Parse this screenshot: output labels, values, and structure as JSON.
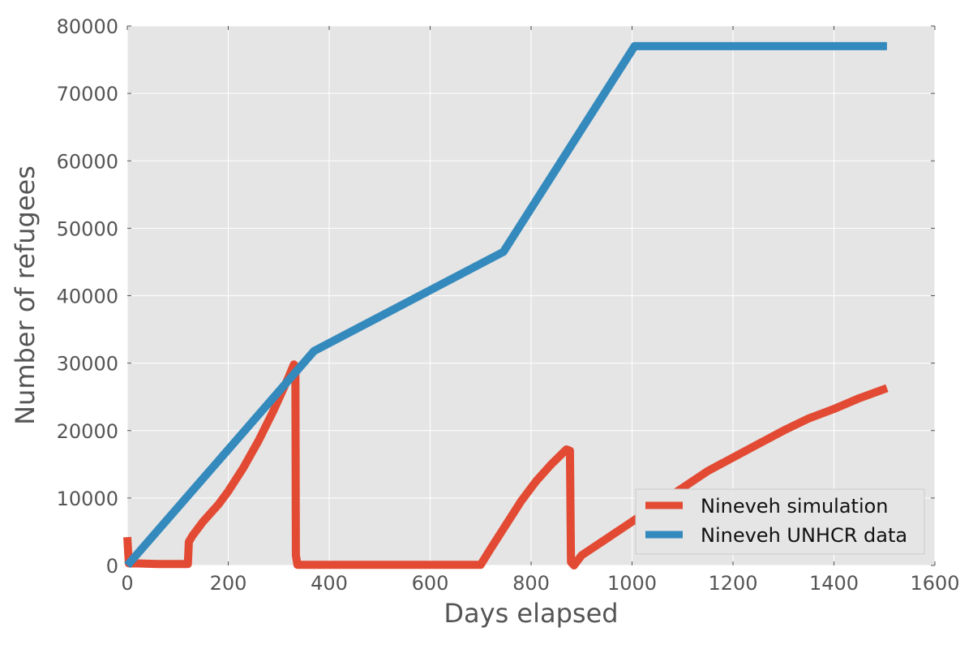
{
  "chart_data": {
    "type": "line",
    "xlabel": "Days elapsed",
    "ylabel": "Number of refugees",
    "xlim": [
      0,
      1600
    ],
    "ylim": [
      0,
      80000
    ],
    "xticks": [
      0,
      200,
      400,
      600,
      800,
      1000,
      1200,
      1400,
      1600
    ],
    "yticks": [
      0,
      10000,
      20000,
      30000,
      40000,
      50000,
      60000,
      70000,
      80000
    ],
    "grid": true,
    "legend_position": "bottom-right",
    "series": [
      {
        "name": "Nineveh simulation",
        "color": "#E24A33",
        "points": [
          [
            0,
            4200
          ],
          [
            3,
            300
          ],
          [
            20,
            300
          ],
          [
            60,
            200
          ],
          [
            100,
            200
          ],
          [
            120,
            200
          ],
          [
            122,
            3500
          ],
          [
            130,
            4500
          ],
          [
            150,
            6500
          ],
          [
            180,
            9000
          ],
          [
            200,
            11000
          ],
          [
            230,
            14500
          ],
          [
            260,
            18500
          ],
          [
            290,
            23000
          ],
          [
            320,
            28000
          ],
          [
            330,
            29800
          ],
          [
            333,
            29500
          ],
          [
            334,
            1500
          ],
          [
            337,
            100
          ],
          [
            400,
            100
          ],
          [
            500,
            100
          ],
          [
            600,
            100
          ],
          [
            700,
            100
          ],
          [
            720,
            2500
          ],
          [
            750,
            6000
          ],
          [
            780,
            9500
          ],
          [
            810,
            12500
          ],
          [
            840,
            15000
          ],
          [
            870,
            17200
          ],
          [
            877,
            17000
          ],
          [
            879,
            500
          ],
          [
            885,
            0
          ],
          [
            900,
            1500
          ],
          [
            950,
            4000
          ],
          [
            1000,
            6500
          ],
          [
            1050,
            9000
          ],
          [
            1100,
            11500
          ],
          [
            1150,
            14000
          ],
          [
            1200,
            16000
          ],
          [
            1250,
            18000
          ],
          [
            1300,
            20000
          ],
          [
            1350,
            21800
          ],
          [
            1400,
            23200
          ],
          [
            1450,
            24800
          ],
          [
            1505,
            26300
          ]
        ]
      },
      {
        "name": "Nineveh UNHCR data",
        "color": "#348ABD",
        "points": [
          [
            0,
            0
          ],
          [
            370,
            31800
          ],
          [
            745,
            46500
          ],
          [
            1005,
            77000
          ],
          [
            1505,
            77000
          ]
        ]
      }
    ]
  }
}
